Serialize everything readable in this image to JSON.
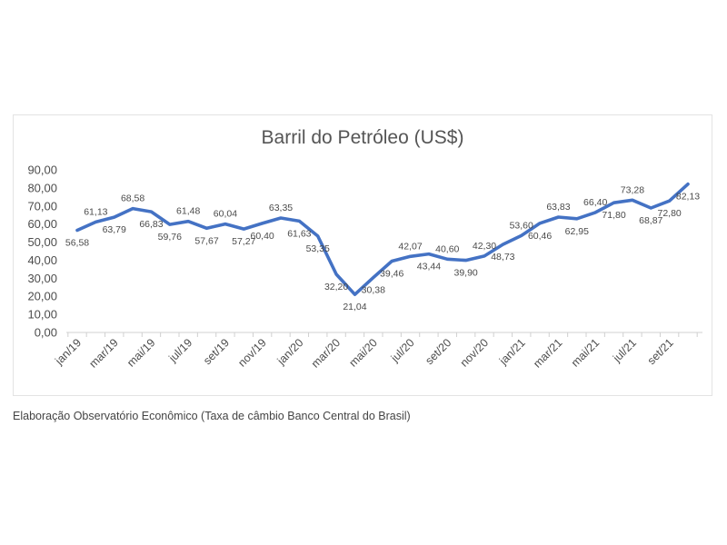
{
  "caption": "Elaboração Observatório Econômico (Taxa de câmbio Banco Central do Brasil)",
  "chart_data": {
    "type": "line",
    "title": "Barril do Petróleo (US$)",
    "xlabel": "",
    "ylabel": "",
    "ylim": [
      0,
      90
    ],
    "yticks": [
      "0,00",
      "10,00",
      "20,00",
      "30,00",
      "40,00",
      "50,00",
      "60,00",
      "70,00",
      "80,00",
      "90,00"
    ],
    "x": [
      "jan/19",
      "fev/19",
      "mar/19",
      "abr/19",
      "mai/19",
      "jun/19",
      "jul/19",
      "ago/19",
      "set/19",
      "out/19",
      "nov/19",
      "dez/19",
      "jan/20",
      "fev/20",
      "mar/20",
      "abr/20",
      "mai/20",
      "jun/20",
      "jul/20",
      "ago/20",
      "set/20",
      "out/20",
      "nov/20",
      "dez/20",
      "jan/21",
      "fev/21",
      "mar/21",
      "abr/21",
      "mai/21",
      "jun/21",
      "jul/21",
      "ago/21",
      "set/21",
      "out/21"
    ],
    "x_tick_labels": [
      "jan/19",
      "mar/19",
      "mai/19",
      "jul/19",
      "set/19",
      "nov/19",
      "jan/20",
      "mar/20",
      "mai/20",
      "jul/20",
      "set/20",
      "nov/20",
      "jan/21",
      "mar/21",
      "mai/21",
      "jul/21",
      "set/21"
    ],
    "values": [
      56.58,
      61.13,
      63.79,
      68.58,
      66.83,
      59.76,
      61.48,
      57.67,
      60.04,
      57.27,
      60.4,
      63.35,
      61.63,
      53.35,
      32.2,
      21.04,
      30.38,
      39.46,
      42.07,
      43.44,
      40.6,
      39.9,
      42.3,
      48.73,
      53.6,
      60.46,
      63.83,
      62.95,
      66.4,
      71.8,
      73.28,
      68.87,
      72.8,
      82.13
    ],
    "data_labels": [
      "56,58",
      "61,13",
      "63,79",
      "68,58",
      "66,83",
      "59,76",
      "61,48",
      "57,67",
      "60,04",
      "57,27",
      "60,40",
      "63,35",
      "61,63",
      "53,35",
      "32,20",
      "21,04",
      "30,38",
      "39,46",
      "42,07",
      "43,44",
      "40,60",
      "39,90",
      "42,30",
      "48,73",
      "53,60",
      "60,46",
      "63,83",
      "62,95",
      "66,40",
      "71,80",
      "73,28",
      "68,87",
      "72,80",
      "82,13"
    ],
    "label_position": [
      "below",
      "above",
      "below",
      "above",
      "below",
      "below",
      "above",
      "below",
      "above",
      "below",
      "below",
      "above",
      "below",
      "below",
      "below",
      "below",
      "below",
      "below",
      "above",
      "below",
      "above",
      "below",
      "above",
      "below",
      "above",
      "below",
      "above",
      "below",
      "above",
      "below",
      "above",
      "below",
      "below",
      "below"
    ],
    "grid": false,
    "legend": false,
    "line_color": "#4472c4"
  }
}
